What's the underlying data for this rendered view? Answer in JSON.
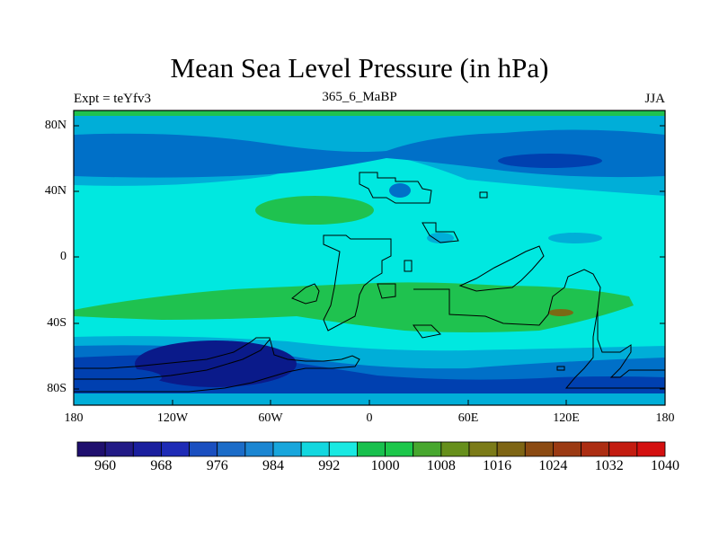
{
  "title": "Mean Sea Level Pressure (in hPa)",
  "subtitle_left": "Expt = teYfv3",
  "subtitle_center": "365_6_MaBP",
  "subtitle_right": "JJA",
  "lat_ticks": [
    "80N",
    "40N",
    "0",
    "40S",
    "80S"
  ],
  "lon_ticks": [
    "180",
    "120W",
    "60W",
    "0",
    "60E",
    "120E",
    "180"
  ],
  "colorbar": {
    "labels": [
      "960",
      "968",
      "976",
      "984",
      "992",
      "1000",
      "1008",
      "1016",
      "1024",
      "1032",
      "1040"
    ],
    "colors": [
      "#1f0f6e",
      "#221a86",
      "#1a1f9e",
      "#1e2bb6",
      "#1a4fc0",
      "#1b6cc8",
      "#1b86d2",
      "#18a6dc",
      "#12d7df",
      "#19e9e2",
      "#18c04d",
      "#1cc74a",
      "#47a72e",
      "#668f1b",
      "#7b7b18",
      "#7e6514",
      "#8b4a12",
      "#9b3a13",
      "#ac2d12",
      "#c31c10",
      "#d41010"
    ]
  },
  "colors": {
    "band_1000": "#00e8e0",
    "band_992": "#00aed8",
    "band_984": "#0070c8",
    "band_976": "#0040b0",
    "band_968": "#0a1a8a",
    "band_1008": "#1fc24f",
    "band_1016": "#4aa82e",
    "band_1024": "#7a6a14"
  }
}
